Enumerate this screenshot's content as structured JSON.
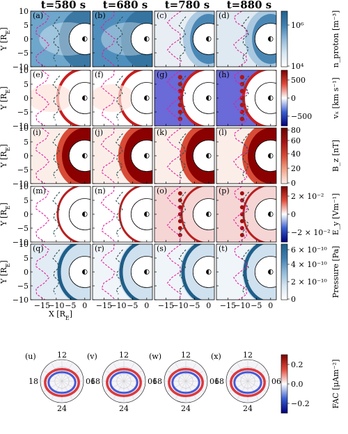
{
  "figure": {
    "column_titles": [
      "t=580 s",
      "t=680 s",
      "t=780 s",
      "t=880 s"
    ],
    "y_label": "Y [R_E]",
    "x_label": "X [R_E]",
    "x_ticks": [
      "−15",
      "−10",
      "−5",
      "0"
    ],
    "y_ticks": [
      "10",
      "5",
      "0",
      "−5",
      "−10"
    ],
    "panel_labels": [
      [
        "(a)",
        "(b)",
        "(c)",
        "(d)"
      ],
      [
        "(e)",
        "(f)",
        "(g)",
        "(h)"
      ],
      [
        "(i)",
        "(j)",
        "(k)",
        "(l)"
      ],
      [
        "(m)",
        "(n)",
        "(o)",
        "(p)"
      ],
      [
        "(q)",
        "(r)",
        "(s)",
        "(t)"
      ],
      [
        "(u)",
        "(v)",
        "(w)",
        "(x)"
      ]
    ],
    "rows": [
      {
        "quantity": "n_proton [m^-3]",
        "label": "n_proton [m⁻³]",
        "colormap": "white-blue",
        "scale": "log",
        "colorbar_ticks": [
          "10⁶",
          "10⁴"
        ],
        "range": [
          10000,
          3000000
        ]
      },
      {
        "quantity": "v_x [km s^-1]",
        "label": "vₓ [km s⁻¹]",
        "colormap": "blue-white-red",
        "scale": "linear",
        "colorbar_ticks": [
          "500",
          "0",
          "−500"
        ],
        "range": [
          -800,
          800
        ]
      },
      {
        "quantity": "B_z [nT]",
        "label": "B_z [nT]",
        "colormap": "white-red",
        "scale": "linear",
        "colorbar_ticks": [
          "80",
          "60",
          "40",
          "20",
          "0"
        ],
        "range": [
          0,
          80
        ]
      },
      {
        "quantity": "E_y [V m^-1]",
        "label": "E_y [Vm⁻¹]",
        "colormap": "blue-white-red",
        "scale": "linear",
        "colorbar_ticks": [
          "2 × 10⁻²",
          "0",
          "−2 × 10⁻²"
        ],
        "range": [
          -0.03,
          0.03
        ]
      },
      {
        "quantity": "Pressure [Pa]",
        "label": "Pressure [Pa]",
        "colormap": "white-blue",
        "scale": "linear",
        "colorbar_ticks": [
          "6 × 10⁻¹⁰",
          "4 × 10⁻¹⁰",
          "2 × 10⁻¹⁰",
          "0"
        ],
        "range": [
          0,
          6.5e-10
        ]
      }
    ],
    "polar_row": {
      "label": "FAC [μAm⁻²]",
      "mlt_labels": {
        "top": "12",
        "left": "18",
        "right": "06",
        "bottom": "24"
      },
      "colorbar_ticks": [
        "0.2",
        "0.0",
        "−0.2"
      ],
      "range": [
        -0.3,
        0.3
      ]
    },
    "colors": {
      "blue_dark": "#1f5f8a",
      "red_dark": "#8b0000",
      "contour_magenta": "#e0209e",
      "contour_dark": "#2f4f4f"
    }
  },
  "chart_data": {
    "type": "heatmap",
    "title": "",
    "times_s": [
      580,
      680,
      780,
      880
    ],
    "xlim": [
      -19,
      2
    ],
    "ylim": [
      -10,
      10
    ],
    "xlabel": "X [R_E]",
    "ylabel": "Y [R_E]",
    "variables": [
      "n_proton",
      "v_x",
      "B_z",
      "E_y",
      "Pressure",
      "FAC"
    ],
    "grid": false
  }
}
